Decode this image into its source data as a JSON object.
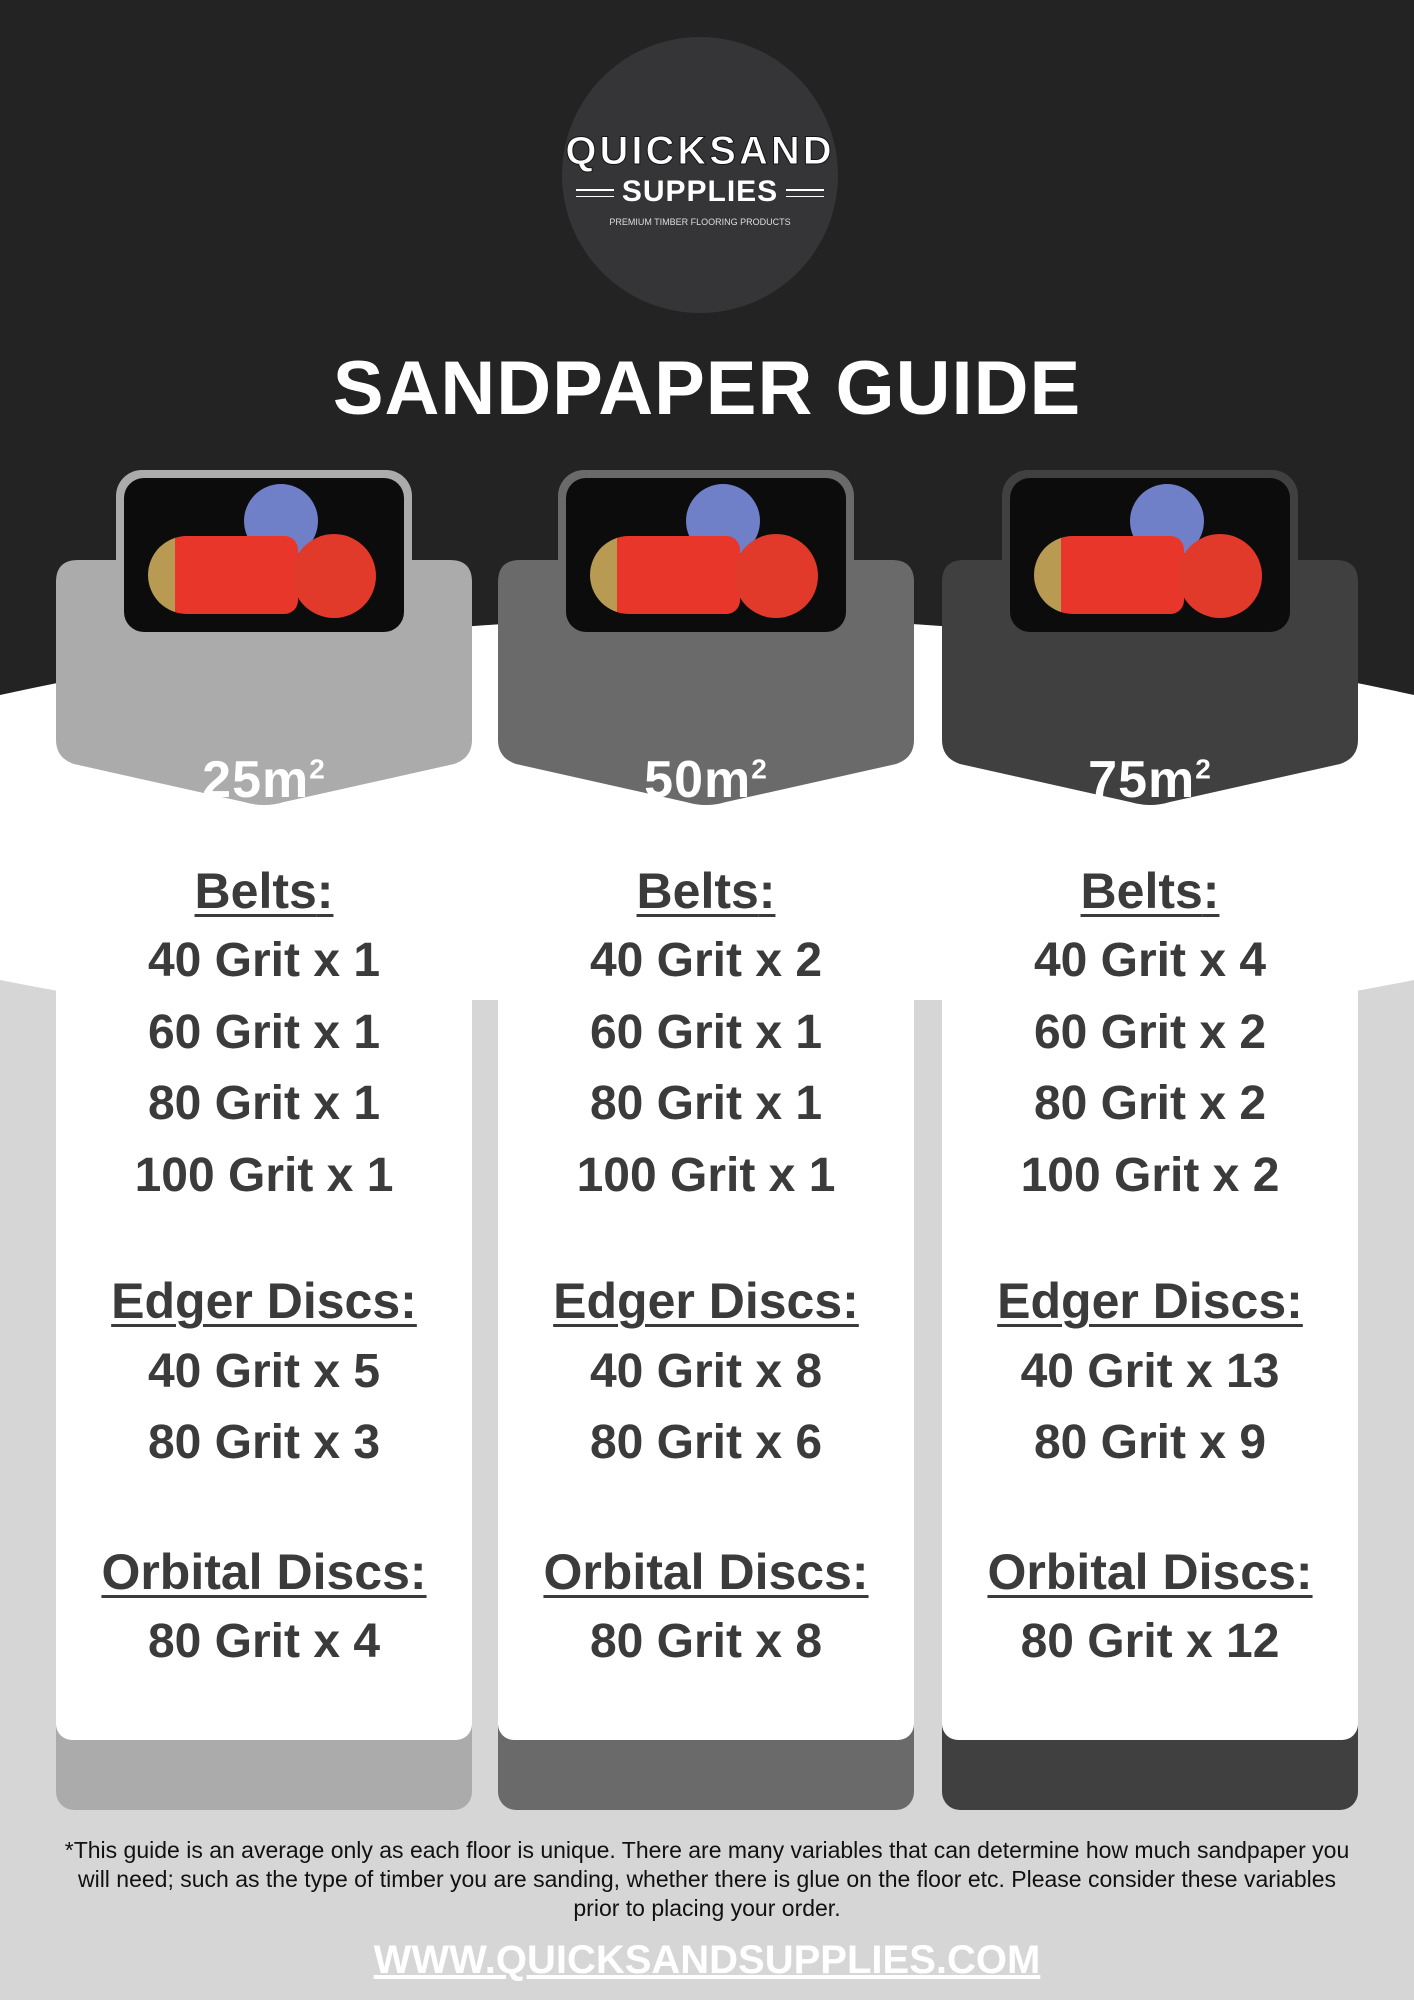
{
  "brand": {
    "name_top": "QUICKSAND",
    "name_bottom": "SUPPLIES",
    "tagline": "PREMIUM TIMBER FLOORING PRODUCTS"
  },
  "title": "SANDPAPER GUIDE",
  "colors": {
    "dark_bg": "#232323",
    "col1": "#ababab",
    "col2": "#6a6a6a",
    "col3": "#404040",
    "text": "#3b3b3b"
  },
  "columns": [
    {
      "area": "25m",
      "sup": "2",
      "belts_title": "Belts",
      "belts": [
        "40 Grit x 1",
        "60 Grit x 1",
        "80 Grit x 1",
        "100 Grit x 1"
      ],
      "edger_title": "Edger Discs:",
      "edger": [
        "40 Grit x 5",
        "80 Grit x 3"
      ],
      "orbital_title": "Orbital Discs:",
      "orbital": [
        "80 Grit x 4"
      ]
    },
    {
      "area": "50m",
      "sup": "2",
      "belts_title": "Belts",
      "belts": [
        "40 Grit x 2",
        "60 Grit x 1",
        "80 Grit x 1",
        "100 Grit x 1"
      ],
      "edger_title": "Edger Discs:",
      "edger": [
        "40 Grit x 8",
        "80 Grit x 6"
      ],
      "orbital_title": "Orbital Discs:",
      "orbital": [
        "80 Grit x 8"
      ]
    },
    {
      "area": "75m",
      "sup": "2",
      "belts_title": "Belts",
      "belts": [
        "40 Grit x 4",
        "60 Grit x 2",
        "80 Grit x 2",
        "100 Grit x 2"
      ],
      "edger_title": "Edger Discs:",
      "edger": [
        "40 Grit x 13",
        "80 Grit x 9"
      ],
      "orbital_title": "Orbital Discs:",
      "orbital": [
        "80 Grit x 12"
      ]
    }
  ],
  "footer": {
    "note": "*This guide is an average only as each floor is unique. There are many variables that can determine how much sandpaper you will need; such as the type of timber you are sanding, whether there is glue on the floor etc. Please consider these variables prior to placing your order.",
    "url": "WWW.QUICKSANDSUPPLIES.COM"
  }
}
